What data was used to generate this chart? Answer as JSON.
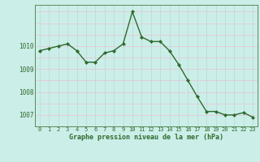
{
  "x": [
    0,
    1,
    2,
    3,
    4,
    5,
    6,
    7,
    8,
    9,
    10,
    11,
    12,
    13,
    14,
    15,
    16,
    17,
    18,
    19,
    20,
    21,
    22,
    23
  ],
  "y": [
    1009.8,
    1009.9,
    1010.0,
    1010.1,
    1009.8,
    1009.3,
    1009.3,
    1009.7,
    1009.8,
    1010.1,
    1011.5,
    1010.4,
    1010.2,
    1010.2,
    1009.8,
    1009.2,
    1008.5,
    1007.8,
    1007.15,
    1007.15,
    1007.0,
    1007.0,
    1007.1,
    1006.9
  ],
  "line_color": "#2d6a2d",
  "marker_color": "#2d6a2d",
  "bg_color": "#cceee8",
  "grid_h_color": "#e8c8d8",
  "grid_v_color": "#b8ddd8",
  "xlabel": "Graphe pression niveau de la mer (hPa)",
  "tick_color": "#2d6a2d",
  "ylim": [
    1006.5,
    1011.8
  ],
  "yticks": [
    1007,
    1008,
    1009,
    1010
  ],
  "xticks": [
    0,
    1,
    2,
    3,
    4,
    5,
    6,
    7,
    8,
    9,
    10,
    11,
    12,
    13,
    14,
    15,
    16,
    17,
    18,
    19,
    20,
    21,
    22,
    23
  ],
  "xtick_labels": [
    "0",
    "1",
    "2",
    "3",
    "4",
    "5",
    "6",
    "7",
    "8",
    "9",
    "10",
    "11",
    "12",
    "13",
    "14",
    "15",
    "16",
    "17",
    "18",
    "19",
    "20",
    "21",
    "22",
    "23"
  ]
}
